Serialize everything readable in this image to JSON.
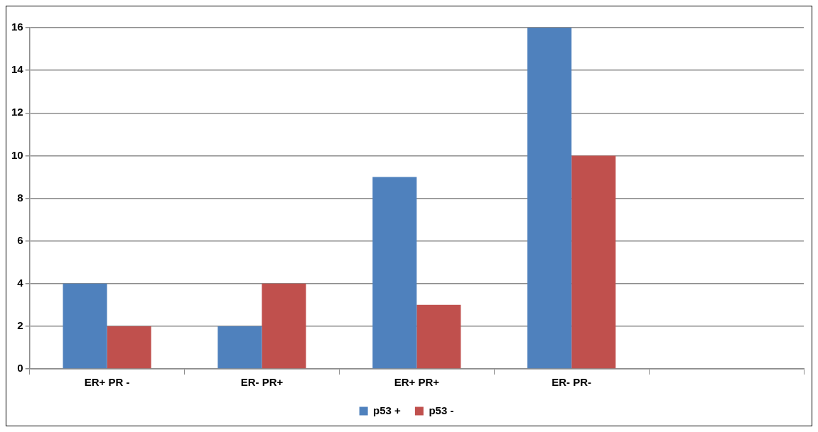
{
  "chart_data": {
    "type": "bar",
    "categories": [
      "ER+ PR -",
      "ER- PR+",
      "ER+ PR+",
      "ER- PR-",
      null
    ],
    "series": [
      {
        "name": "p53 +",
        "color": "#4f81bd",
        "values": [
          4,
          2,
          9,
          16,
          null
        ]
      },
      {
        "name": "p53 -",
        "color": "#c0504d",
        "values": [
          2,
          4,
          3,
          10,
          null
        ]
      }
    ],
    "ylim": [
      0,
      16
    ],
    "yticks": [
      0,
      2,
      4,
      6,
      8,
      10,
      12,
      14,
      16
    ],
    "grid": "y",
    "legend": "bottom"
  }
}
